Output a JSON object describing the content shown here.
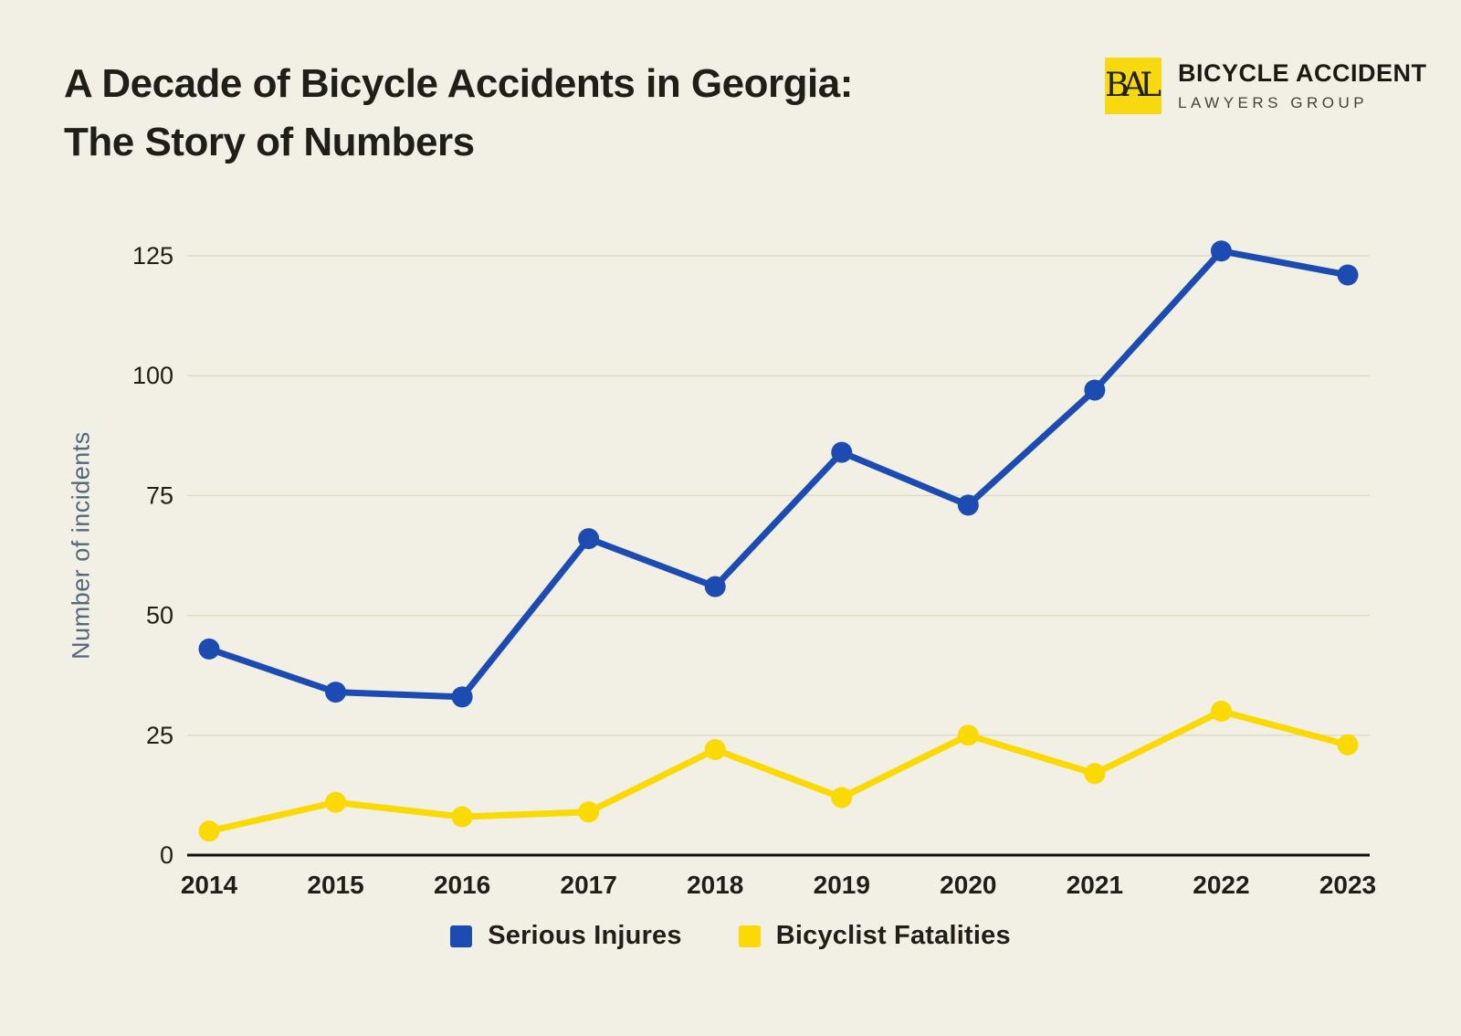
{
  "page": {
    "background_color": "#f2f0e4"
  },
  "header": {
    "title_line1": "A Decade of Bicycle Accidents in Georgia:",
    "title_line2": "The Story of Numbers",
    "logo": {
      "monogram": "BAL",
      "square_color": "#f6d90e",
      "name_line1": "BICYCLE ACCIDENT",
      "name_line2": "LAWYERS GROUP"
    }
  },
  "chart_data": {
    "type": "line",
    "title": "A Decade of Bicycle Accidents in Georgia: The Story of Numbers",
    "xlabel": "",
    "ylabel": "Number of incidents",
    "categories": [
      "2014",
      "2015",
      "2016",
      "2017",
      "2018",
      "2019",
      "2020",
      "2021",
      "2022",
      "2023"
    ],
    "yticks": [
      0,
      25,
      50,
      75,
      100,
      125
    ],
    "ylim": [
      0,
      125
    ],
    "grid": true,
    "legend_position": "bottom",
    "series": [
      {
        "name": "Serious Injures",
        "color": "#1c4bb2",
        "values": [
          43,
          34,
          33,
          66,
          56,
          84,
          73,
          97,
          126,
          121
        ]
      },
      {
        "name": "Bicyclist Fatalities",
        "color": "#fbd903",
        "values": [
          5,
          11,
          8,
          9,
          22,
          12,
          25,
          17,
          30,
          23
        ]
      }
    ],
    "style": {
      "grid_color": "#dfdcca",
      "axis_color": "#111111",
      "tick_label_color": "#201e18",
      "axis_title_color": "#54677c"
    }
  }
}
